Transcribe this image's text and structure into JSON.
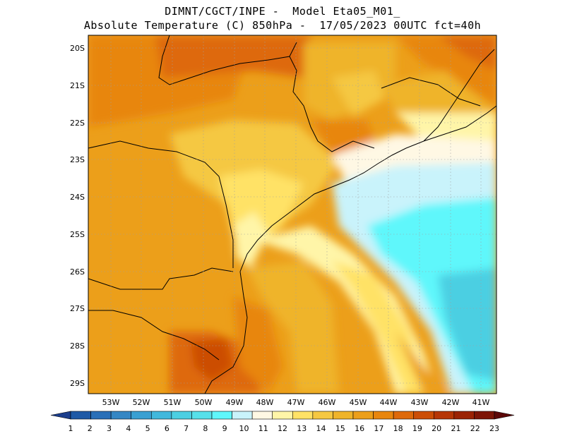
{
  "header": {
    "line1": "DIMNT/CGCT/INPE -  Model Eta05_M01_",
    "line2": "Absolute Temperature (C) 850hPa -  17/05/2023 00UTC fct=40h"
  },
  "map": {
    "lat_labels": [
      "20S",
      "21S",
      "22S",
      "23S",
      "24S",
      "25S",
      "26S",
      "27S",
      "28S",
      "29S"
    ],
    "lon_labels": [
      "53W",
      "52W",
      "51W",
      "50W",
      "49W",
      "48W",
      "47W",
      "46W",
      "45W",
      "44W",
      "43W",
      "42W",
      "41W"
    ],
    "lon_range": [
      -53.7,
      -40.5
    ],
    "lat_range": [
      -29.4,
      -19.8
    ],
    "gridlines": true
  },
  "colorbar": {
    "labels": [
      "1",
      "2",
      "3",
      "4",
      "5",
      "6",
      "7",
      "8",
      "9",
      "10",
      "11",
      "12",
      "13",
      "14",
      "15",
      "16",
      "17",
      "18",
      "19",
      "20",
      "21",
      "22",
      "23"
    ],
    "colors": [
      "#1b3e8c",
      "#1f5aa6",
      "#2a70b8",
      "#3587c4",
      "#3aa0d2",
      "#41b8dc",
      "#4ccfe2",
      "#56e0ea",
      "#5ff7fb",
      "#c9f3fb",
      "#fff8e4",
      "#fff5a8",
      "#ffe266",
      "#f5c842",
      "#efb42a",
      "#ec9f1a",
      "#e8860e",
      "#de690a",
      "#cc4e06",
      "#b63606",
      "#9b2304",
      "#7d1506",
      "#5c0808"
    ]
  }
}
